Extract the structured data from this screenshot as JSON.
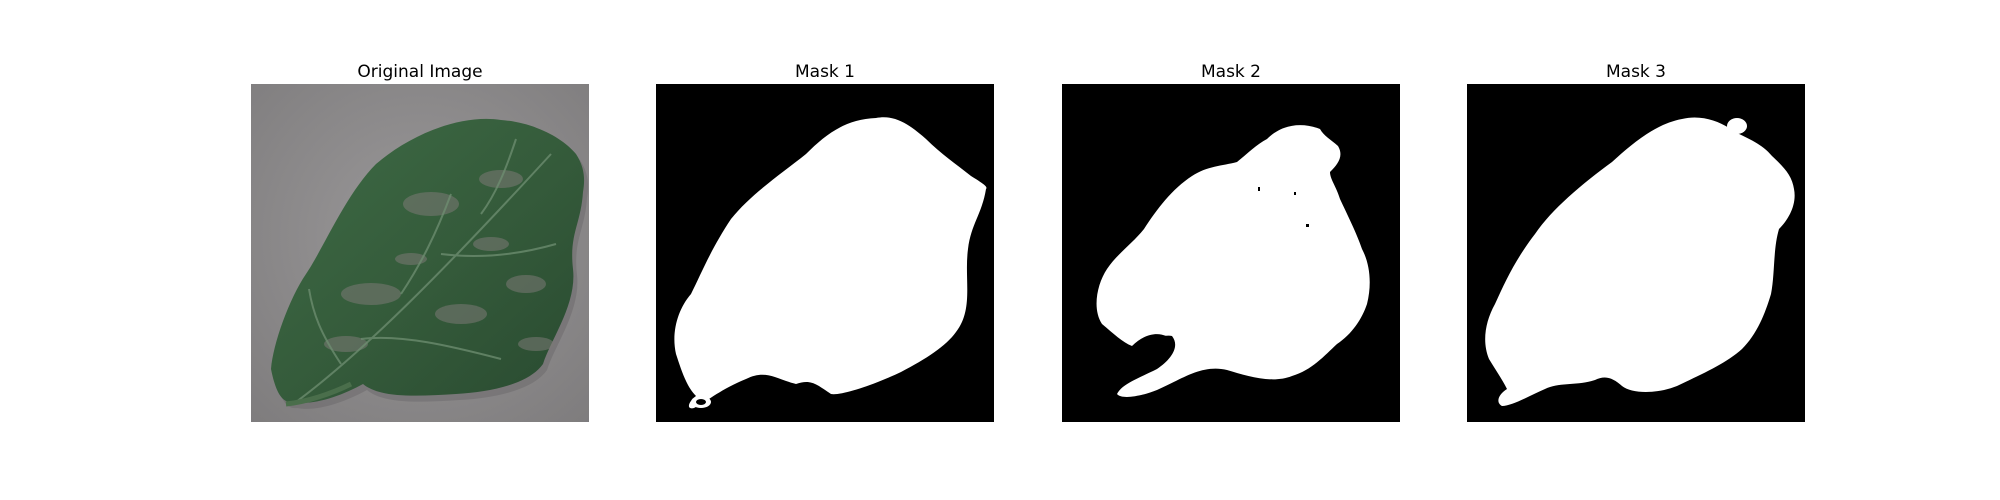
{
  "figure": {
    "panels": [
      {
        "title": "Original Image",
        "kind": "photo"
      },
      {
        "title": "Mask 1",
        "kind": "binary-mask"
      },
      {
        "title": "Mask 2",
        "kind": "binary-mask"
      },
      {
        "title": "Mask 3",
        "kind": "binary-mask"
      }
    ]
  },
  "colors": {
    "background": "#ffffff",
    "mask_background": "#000000",
    "mask_foreground": "#ffffff",
    "photo_backdrop": "#8d8b8c",
    "leaf_dark_green": "#2f4f35",
    "leaf_mid_green": "#3f6a46"
  }
}
